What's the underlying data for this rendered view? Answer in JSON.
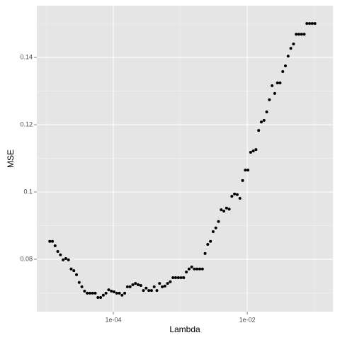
{
  "chart_data": {
    "type": "scatter",
    "x_label": "Lambda",
    "y_label": "MSE",
    "xscale": "log",
    "grid": true,
    "color": "#000000",
    "x": [
      1.122e-05,
      1.23e-05,
      1.349e-05,
      1.479e-05,
      1.622e-05,
      1.778e-05,
      1.95e-05,
      2.138e-05,
      2.344e-05,
      2.57e-05,
      2.818e-05,
      3.09e-05,
      3.388e-05,
      3.715e-05,
      4.074e-05,
      4.467e-05,
      4.898e-05,
      5.37e-05,
      5.888e-05,
      6.457e-05,
      7.079e-05,
      7.762e-05,
      8.511e-05,
      9.333e-05,
      0.0001023,
      0.0001122,
      0.000123,
      0.0001349,
      0.0001479,
      0.0001622,
      0.0001778,
      0.000195,
      0.0002138,
      0.0002344,
      0.000257,
      0.0002818,
      0.000309,
      0.0003388,
      0.0003715,
      0.0004074,
      0.0004467,
      0.0004898,
      0.000537,
      0.0005888,
      0.0006457,
      0.0007079,
      0.0007762,
      0.0008511,
      0.0009333,
      0.001023,
      0.001122,
      0.00123,
      0.001349,
      0.001479,
      0.001622,
      0.001778,
      0.00195,
      0.002138,
      0.002344,
      0.00257,
      0.002818,
      0.00309,
      0.003388,
      0.003715,
      0.004074,
      0.004467,
      0.004898,
      0.00537,
      0.005888,
      0.006457,
      0.007079,
      0.007762,
      0.008511,
      0.009333,
      0.01023,
      0.01122,
      0.0123,
      0.01349,
      0.01479,
      0.01622,
      0.01778,
      0.0195,
      0.02138,
      0.02344,
      0.0257,
      0.02818,
      0.0309,
      0.03388,
      0.03715,
      0.04074,
      0.04467,
      0.04898,
      0.0537,
      0.05888,
      0.06457,
      0.07079,
      0.07762,
      0.08511,
      0.09333,
      0.1023
    ],
    "y": [
      0.0853,
      0.0853,
      0.084,
      0.0823,
      0.0813,
      0.0798,
      0.0802,
      0.0798,
      0.0771,
      0.0766,
      0.0754,
      0.0731,
      0.0718,
      0.0705,
      0.0699,
      0.0699,
      0.0699,
      0.0699,
      0.0686,
      0.0686,
      0.0693,
      0.0699,
      0.0709,
      0.0705,
      0.0703,
      0.0699,
      0.0699,
      0.0693,
      0.0699,
      0.0718,
      0.0718,
      0.0724,
      0.0728,
      0.0724,
      0.0722,
      0.0707,
      0.0714,
      0.0707,
      0.0707,
      0.0718,
      0.0707,
      0.0728,
      0.0718,
      0.072,
      0.0728,
      0.0733,
      0.0745,
      0.0745,
      0.0745,
      0.0745,
      0.0745,
      0.0762,
      0.0771,
      0.0777,
      0.0771,
      0.0771,
      0.0771,
      0.0771,
      0.0817,
      0.0844,
      0.0853,
      0.0882,
      0.0893,
      0.0912,
      0.0947,
      0.0943,
      0.0952,
      0.0949,
      0.0987,
      0.0994,
      0.0992,
      0.0981,
      0.1034,
      0.1065,
      0.1065,
      0.1118,
      0.1122,
      0.1126,
      0.1183,
      0.1208,
      0.1213,
      0.1238,
      0.1274,
      0.1316,
      0.1293,
      0.1324,
      0.1324,
      0.1358,
      0.1375,
      0.1404,
      0.1427,
      0.144,
      0.1469,
      0.1469,
      0.1469,
      0.1469,
      0.1501,
      0.1501,
      0.1501,
      0.1501
    ],
    "xlim": [
      7.2e-06,
      0.19
    ],
    "ylim": [
      0.0644,
      0.1554
    ],
    "xticks": [
      {
        "value": 0.0001,
        "label": "1e-04"
      },
      {
        "value": 0.01,
        "label": "1e-02"
      }
    ],
    "yticks": [
      0.08,
      0.1,
      0.12,
      0.14
    ]
  }
}
